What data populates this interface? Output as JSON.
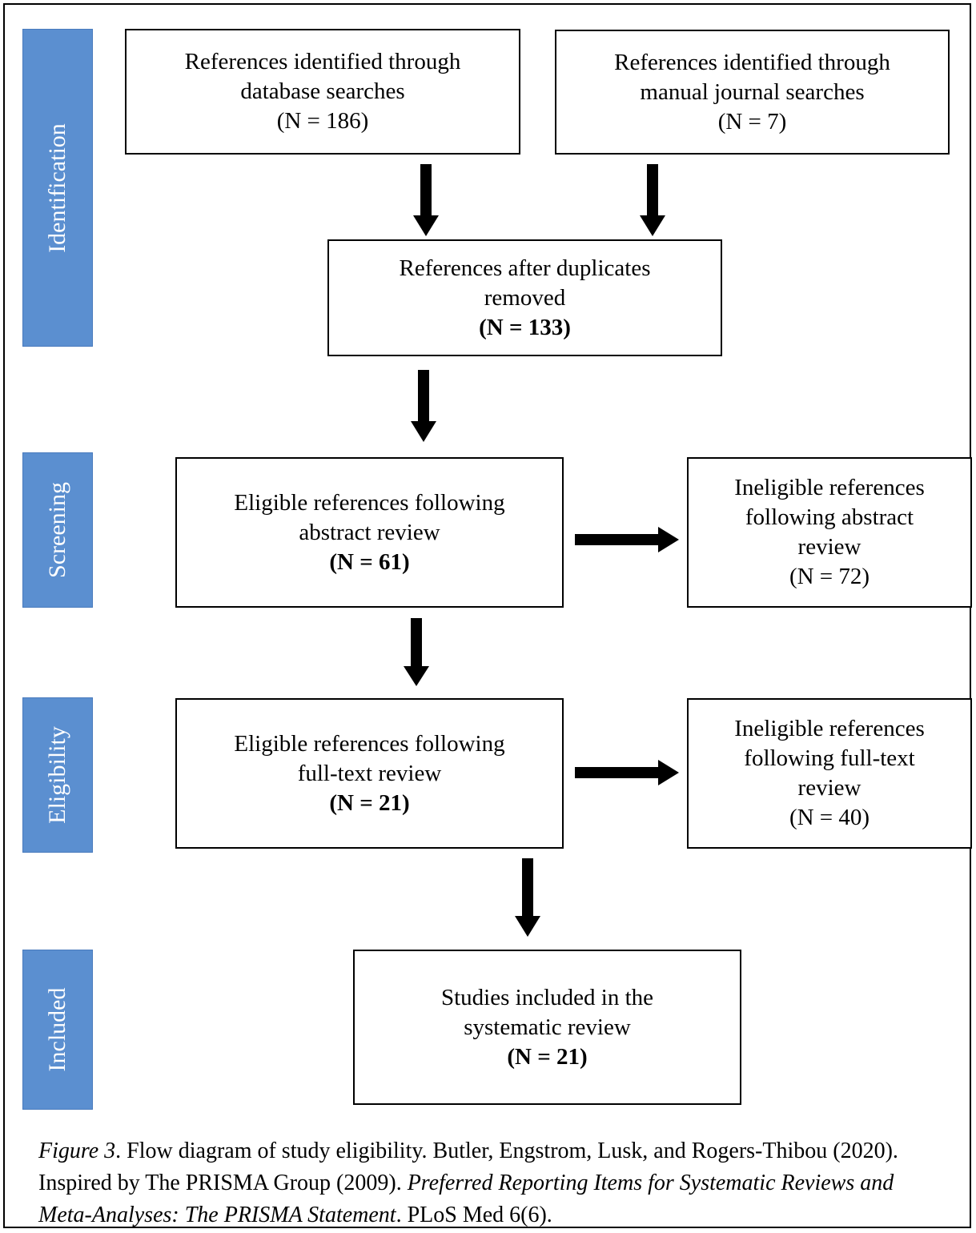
{
  "phases": {
    "identification": "Identification",
    "screening": "Screening",
    "eligibility": "Eligibility",
    "included": "Included"
  },
  "boxes": {
    "database": {
      "line1": "References identified through",
      "line2": "database searches",
      "count": "(N = 186)"
    },
    "manual": {
      "line1": "References identified through",
      "line2": "manual journal searches",
      "count": "(N = 7)"
    },
    "deduplicated": {
      "line1": "References after duplicates",
      "line2": "removed",
      "count": "(N = 133)"
    },
    "abstract_eligible": {
      "line1": "Eligible references following",
      "line2": "abstract review",
      "count": "(N = 61)"
    },
    "abstract_ineligible": {
      "line1": "Ineligible references",
      "line2": "following abstract",
      "line3": "review",
      "count": "(N = 72)"
    },
    "fulltext_eligible": {
      "line1": "Eligible references following",
      "line2": "full-text review",
      "count": "(N = 21)"
    },
    "fulltext_ineligible": {
      "line1": "Ineligible references",
      "line2": "following full-text",
      "line3": "review",
      "count": "(N = 40)"
    },
    "included": {
      "line1": "Studies included in the",
      "line2": "systematic review",
      "count": "(N = 21)"
    }
  },
  "caption": {
    "label": "Figure 3",
    "text1": ". Flow diagram of study eligibility. Butler, Engstrom, Lusk, and Rogers-Thibou (2020). Inspired by The PRISMA Group (2009). ",
    "title": "Preferred Reporting Items for Systematic Reviews and Meta-Analyses: The PRISMA Statement",
    "text2": ". PLoS Med 6(6)."
  }
}
